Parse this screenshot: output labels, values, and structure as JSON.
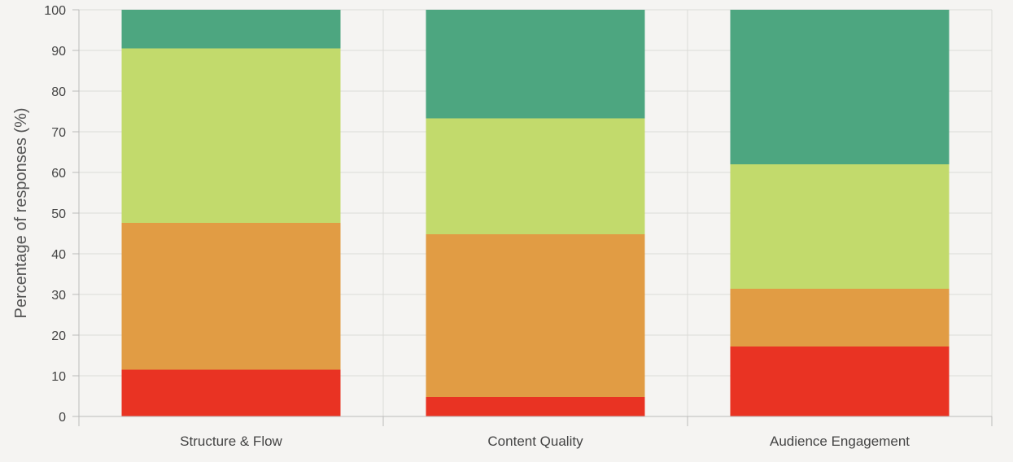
{
  "chart_data": {
    "type": "bar",
    "stacked": true,
    "title": "",
    "xlabel": "",
    "ylabel": "Percentage of responses (%)",
    "ylim": [
      0,
      100
    ],
    "yticks": [
      0,
      10,
      20,
      30,
      40,
      50,
      60,
      70,
      80,
      90,
      100
    ],
    "grid": true,
    "legend": "none",
    "categories": [
      "Structure & Flow",
      "Content Quality",
      "Audience Engagement"
    ],
    "series": [
      {
        "values": [
          11.5,
          4.8,
          17.2
        ],
        "color": "#e93323"
      },
      {
        "values": [
          36.1,
          40.0,
          14.2
        ],
        "color": "#e19c44"
      },
      {
        "values": [
          42.9,
          28.5,
          30.6
        ],
        "color": "#c2da6c"
      },
      {
        "values": [
          9.5,
          26.7,
          38.0
        ],
        "color": "#4da680"
      }
    ]
  }
}
